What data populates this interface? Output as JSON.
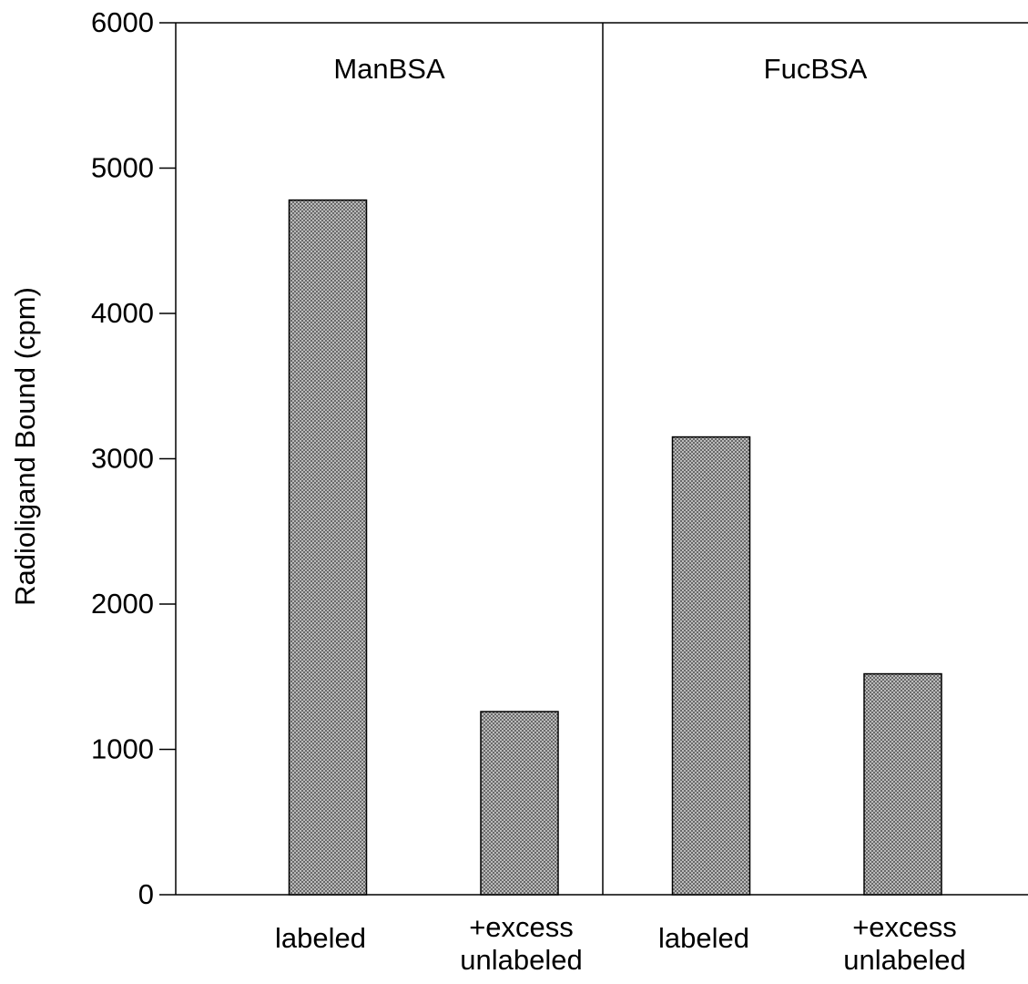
{
  "chart_data": {
    "type": "bar",
    "ylabel": "Radioligand Bound (cpm)",
    "ylim": [
      0,
      6000
    ],
    "yticks": [
      0,
      1000,
      2000,
      3000,
      4000,
      5000,
      6000
    ],
    "color": "#9a9a9a",
    "groups": [
      {
        "name": "ManBSA",
        "categories": [
          [
            "labeled"
          ],
          [
            "+excess",
            "unlabeled"
          ]
        ],
        "values": [
          4780,
          1260
        ]
      },
      {
        "name": "FucBSA",
        "categories": [
          [
            "labeled"
          ],
          [
            "+excess",
            "unlabeled"
          ]
        ],
        "values": [
          3150,
          1520
        ]
      }
    ]
  }
}
